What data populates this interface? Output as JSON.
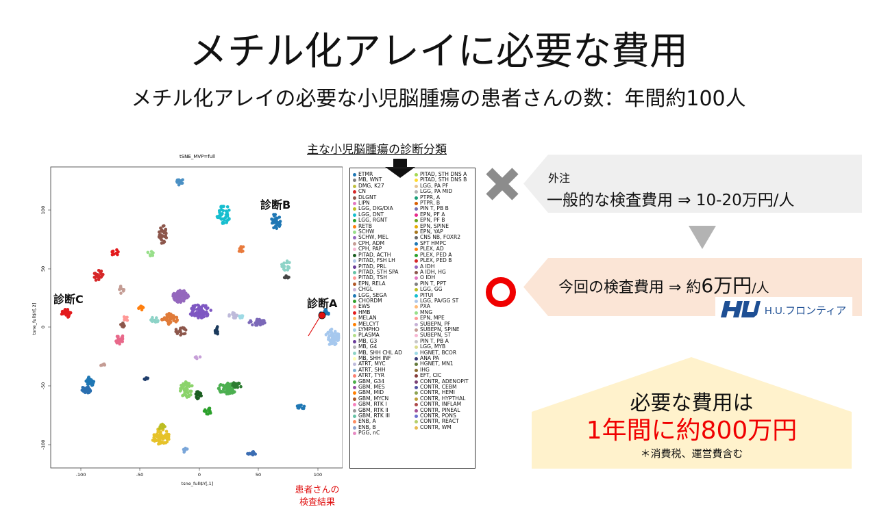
{
  "title": "メチル化アレイに必要な費用",
  "subtitle": "メチル化アレイの必要な小児脳腫瘍の患者さんの数：年間約100人",
  "legend_heading": "主な小児脳腫瘍の診断分類",
  "plot": {
    "title": "tSNE_MVP=full",
    "xlabel": "tsne_full$Y[,1]",
    "ylabel": "tsne_full$Y[,2]",
    "xticks": [
      "-100",
      "-50",
      "0",
      "50",
      "100"
    ],
    "yticks": [
      "100",
      "50",
      "0",
      "-50",
      "-100"
    ],
    "labels": {
      "diag_a": "診断A",
      "diag_b": "診断B",
      "diag_c": "診断C"
    },
    "patient_note": [
      "患者さんの",
      "検査結果"
    ]
  },
  "legend_col1": [
    {
      "name": "ETMR",
      "color": "#1f77b4"
    },
    {
      "name": "MB, WNT",
      "color": "#7f7f7f"
    },
    {
      "name": "DMG, K27",
      "color": "#c0c040"
    },
    {
      "name": "CN",
      "color": "#d62728"
    },
    {
      "name": "DLGNT",
      "color": "#8c564b"
    },
    {
      "name": "LIPN",
      "color": "#e377c2"
    },
    {
      "name": "LGG, DIG/DIA",
      "color": "#bcbd22"
    },
    {
      "name": "LGG, DNT",
      "color": "#17becf"
    },
    {
      "name": "LGG, RGNT",
      "color": "#2ca02c"
    },
    {
      "name": "RETB",
      "color": "#ff7f0e"
    },
    {
      "name": "SCHW",
      "color": "#98df8a"
    },
    {
      "name": "SCHW, MEL",
      "color": "#9467bd"
    },
    {
      "name": "CPH, ADM",
      "color": "#c49c94"
    },
    {
      "name": "CPH, PAP",
      "color": "#f7b6d2"
    },
    {
      "name": "PITAD, ACTH",
      "color": "#1b5e20"
    },
    {
      "name": "PITAD, FSH LH",
      "color": "#aec7e8"
    },
    {
      "name": "PITAD, PRL",
      "color": "#6a3d9a"
    },
    {
      "name": "PITAD, STH SPA",
      "color": "#66c2a5"
    },
    {
      "name": "PITAD, TSH",
      "color": "#ff9896"
    },
    {
      "name": "EPN, RELA",
      "color": "#b15928"
    },
    {
      "name": "CHGL",
      "color": "#cab2d6"
    },
    {
      "name": "LGG, SEGA",
      "color": "#1f78b4"
    },
    {
      "name": "CHORDM",
      "color": "#33a02c"
    },
    {
      "name": "EWS",
      "color": "#fb9a99"
    },
    {
      "name": "HMB",
      "color": "#e31a1c"
    },
    {
      "name": "MELAN",
      "color": "#fdbf6f"
    },
    {
      "name": "MELCYT",
      "color": "#ff7f00"
    },
    {
      "name": "LYMPHO",
      "color": "#a6cee3"
    },
    {
      "name": "PLASMA",
      "color": "#b2df8a"
    },
    {
      "name": "MB, G3",
      "color": "#6a3d9a"
    },
    {
      "name": "MB, G4",
      "color": "#b3b3b3"
    },
    {
      "name": "MB, SHH CHL AD",
      "color": "#8dd3c7"
    },
    {
      "name": "MB, SHH INF",
      "color": "#ffffb3"
    },
    {
      "name": "ATRT, MYC",
      "color": "#bebada"
    },
    {
      "name": "ATRT, SHH",
      "color": "#80b1d3"
    },
    {
      "name": "ATRT, TYR",
      "color": "#fb8072"
    },
    {
      "name": "GBM, G34",
      "color": "#4daf4a"
    },
    {
      "name": "GBM, MES",
      "color": "#984ea3"
    },
    {
      "name": "GBM, MID",
      "color": "#ff7f00"
    },
    {
      "name": "GBM, MYCN",
      "color": "#a65628"
    },
    {
      "name": "GBM, RTK I",
      "color": "#f781bf"
    },
    {
      "name": "GBM, RTK II",
      "color": "#999999"
    },
    {
      "name": "GBM, RTK III",
      "color": "#66c2a5"
    },
    {
      "name": "ENB, A",
      "color": "#fc8d62"
    },
    {
      "name": "ENB, B",
      "color": "#8da0cb"
    },
    {
      "name": "PGG, nC",
      "color": "#e78ac3"
    }
  ],
  "legend_col2": [
    {
      "name": "PITAD, STH DNS A",
      "color": "#a6d854"
    },
    {
      "name": "PITAD, STH DNS B",
      "color": "#ffd92f"
    },
    {
      "name": "LGG, PA PF",
      "color": "#e5c494"
    },
    {
      "name": "LGG, PA MID",
      "color": "#b3b3b3"
    },
    {
      "name": "PTPR, A",
      "color": "#1b9e77"
    },
    {
      "name": "PTPR, B",
      "color": "#d95f02"
    },
    {
      "name": "PIN T,  PB B",
      "color": "#7570b3"
    },
    {
      "name": "EPN, PF A",
      "color": "#e7298a"
    },
    {
      "name": "EPN, PF B",
      "color": "#66a61e"
    },
    {
      "name": "EPN, SPINE",
      "color": "#e6ab02"
    },
    {
      "name": "EPN, YAP",
      "color": "#a6761d"
    },
    {
      "name": "CNS NB, FOXR2",
      "color": "#666666"
    },
    {
      "name": "SFT HMPC",
      "color": "#1f77b4"
    },
    {
      "name": "PLEX, AD",
      "color": "#ff7f0e"
    },
    {
      "name": "PLEX, PED A",
      "color": "#2ca02c"
    },
    {
      "name": "PLEX, PED B",
      "color": "#d62728"
    },
    {
      "name": "A IDH",
      "color": "#9467bd"
    },
    {
      "name": "A IDH, HG",
      "color": "#8c564b"
    },
    {
      "name": "O IDH",
      "color": "#e377c2"
    },
    {
      "name": "PIN T, PPT",
      "color": "#7f7f7f"
    },
    {
      "name": "LGG, GG",
      "color": "#bcbd22"
    },
    {
      "name": "PITUI",
      "color": "#17becf"
    },
    {
      "name": "LGG, PA/GG ST",
      "color": "#aec7e8"
    },
    {
      "name": "PXA",
      "color": "#ffbb78"
    },
    {
      "name": "MNG",
      "color": "#98df8a"
    },
    {
      "name": "EPN, MPE",
      "color": "#ff9896"
    },
    {
      "name": "SUBEPN, PF",
      "color": "#c5b0d5"
    },
    {
      "name": "SUBEPN, SPINE",
      "color": "#c49c94"
    },
    {
      "name": "SUBEPN, ST",
      "color": "#f7b6d2"
    },
    {
      "name": "PIN T,  PB A",
      "color": "#c7c7c7"
    },
    {
      "name": "LGG, MYB",
      "color": "#dbdb8d"
    },
    {
      "name": "HGNET, BCOR",
      "color": "#9edae5"
    },
    {
      "name": "ANA PA",
      "color": "#393b79"
    },
    {
      "name": "HGNET, MN1",
      "color": "#637939"
    },
    {
      "name": "IHG",
      "color": "#8c6d31"
    },
    {
      "name": "EFT, CIC",
      "color": "#843c39"
    },
    {
      "name": "CONTR, ADENOPIT",
      "color": "#7b4173"
    },
    {
      "name": "CONTR, CEBM",
      "color": "#5254a3"
    },
    {
      "name": "CONTR, HEMI",
      "color": "#8ca252"
    },
    {
      "name": "CONTR, HYPTHAL",
      "color": "#bd9e39"
    },
    {
      "name": "CONTR, INFLAM",
      "color": "#ad494a"
    },
    {
      "name": "CONTR, PINEAL",
      "color": "#a55194"
    },
    {
      "name": "CONTR, PONS",
      "color": "#6b6ecf"
    },
    {
      "name": "CONTR, REACT",
      "color": "#b5cf6b"
    },
    {
      "name": "CONTR, WM",
      "color": "#e7ba52"
    }
  ],
  "banner1": {
    "small": "外注",
    "main": "一般的な検査費用 ⇒ 10-20万円/人"
  },
  "banner2": {
    "prefix": "今回の検査費用 ⇒ 約",
    "big": "6万円",
    "suffix": "/人"
  },
  "logo_text": "H.U.フロンティア",
  "cost": {
    "line1": "必要な費用は",
    "line2": "1年間に約800万円",
    "note": "＊消費税、運営費含む"
  },
  "colors": {
    "cross": "#8c8c8c",
    "circle": "#f00000",
    "arrow": "#b3b3b3",
    "accent_red": "#f00000",
    "banner_gray": "#efefef",
    "banner_peach": "#fbe5d6",
    "cost_bg": "#fff2cc",
    "logo_blue": "#1e4f94"
  }
}
